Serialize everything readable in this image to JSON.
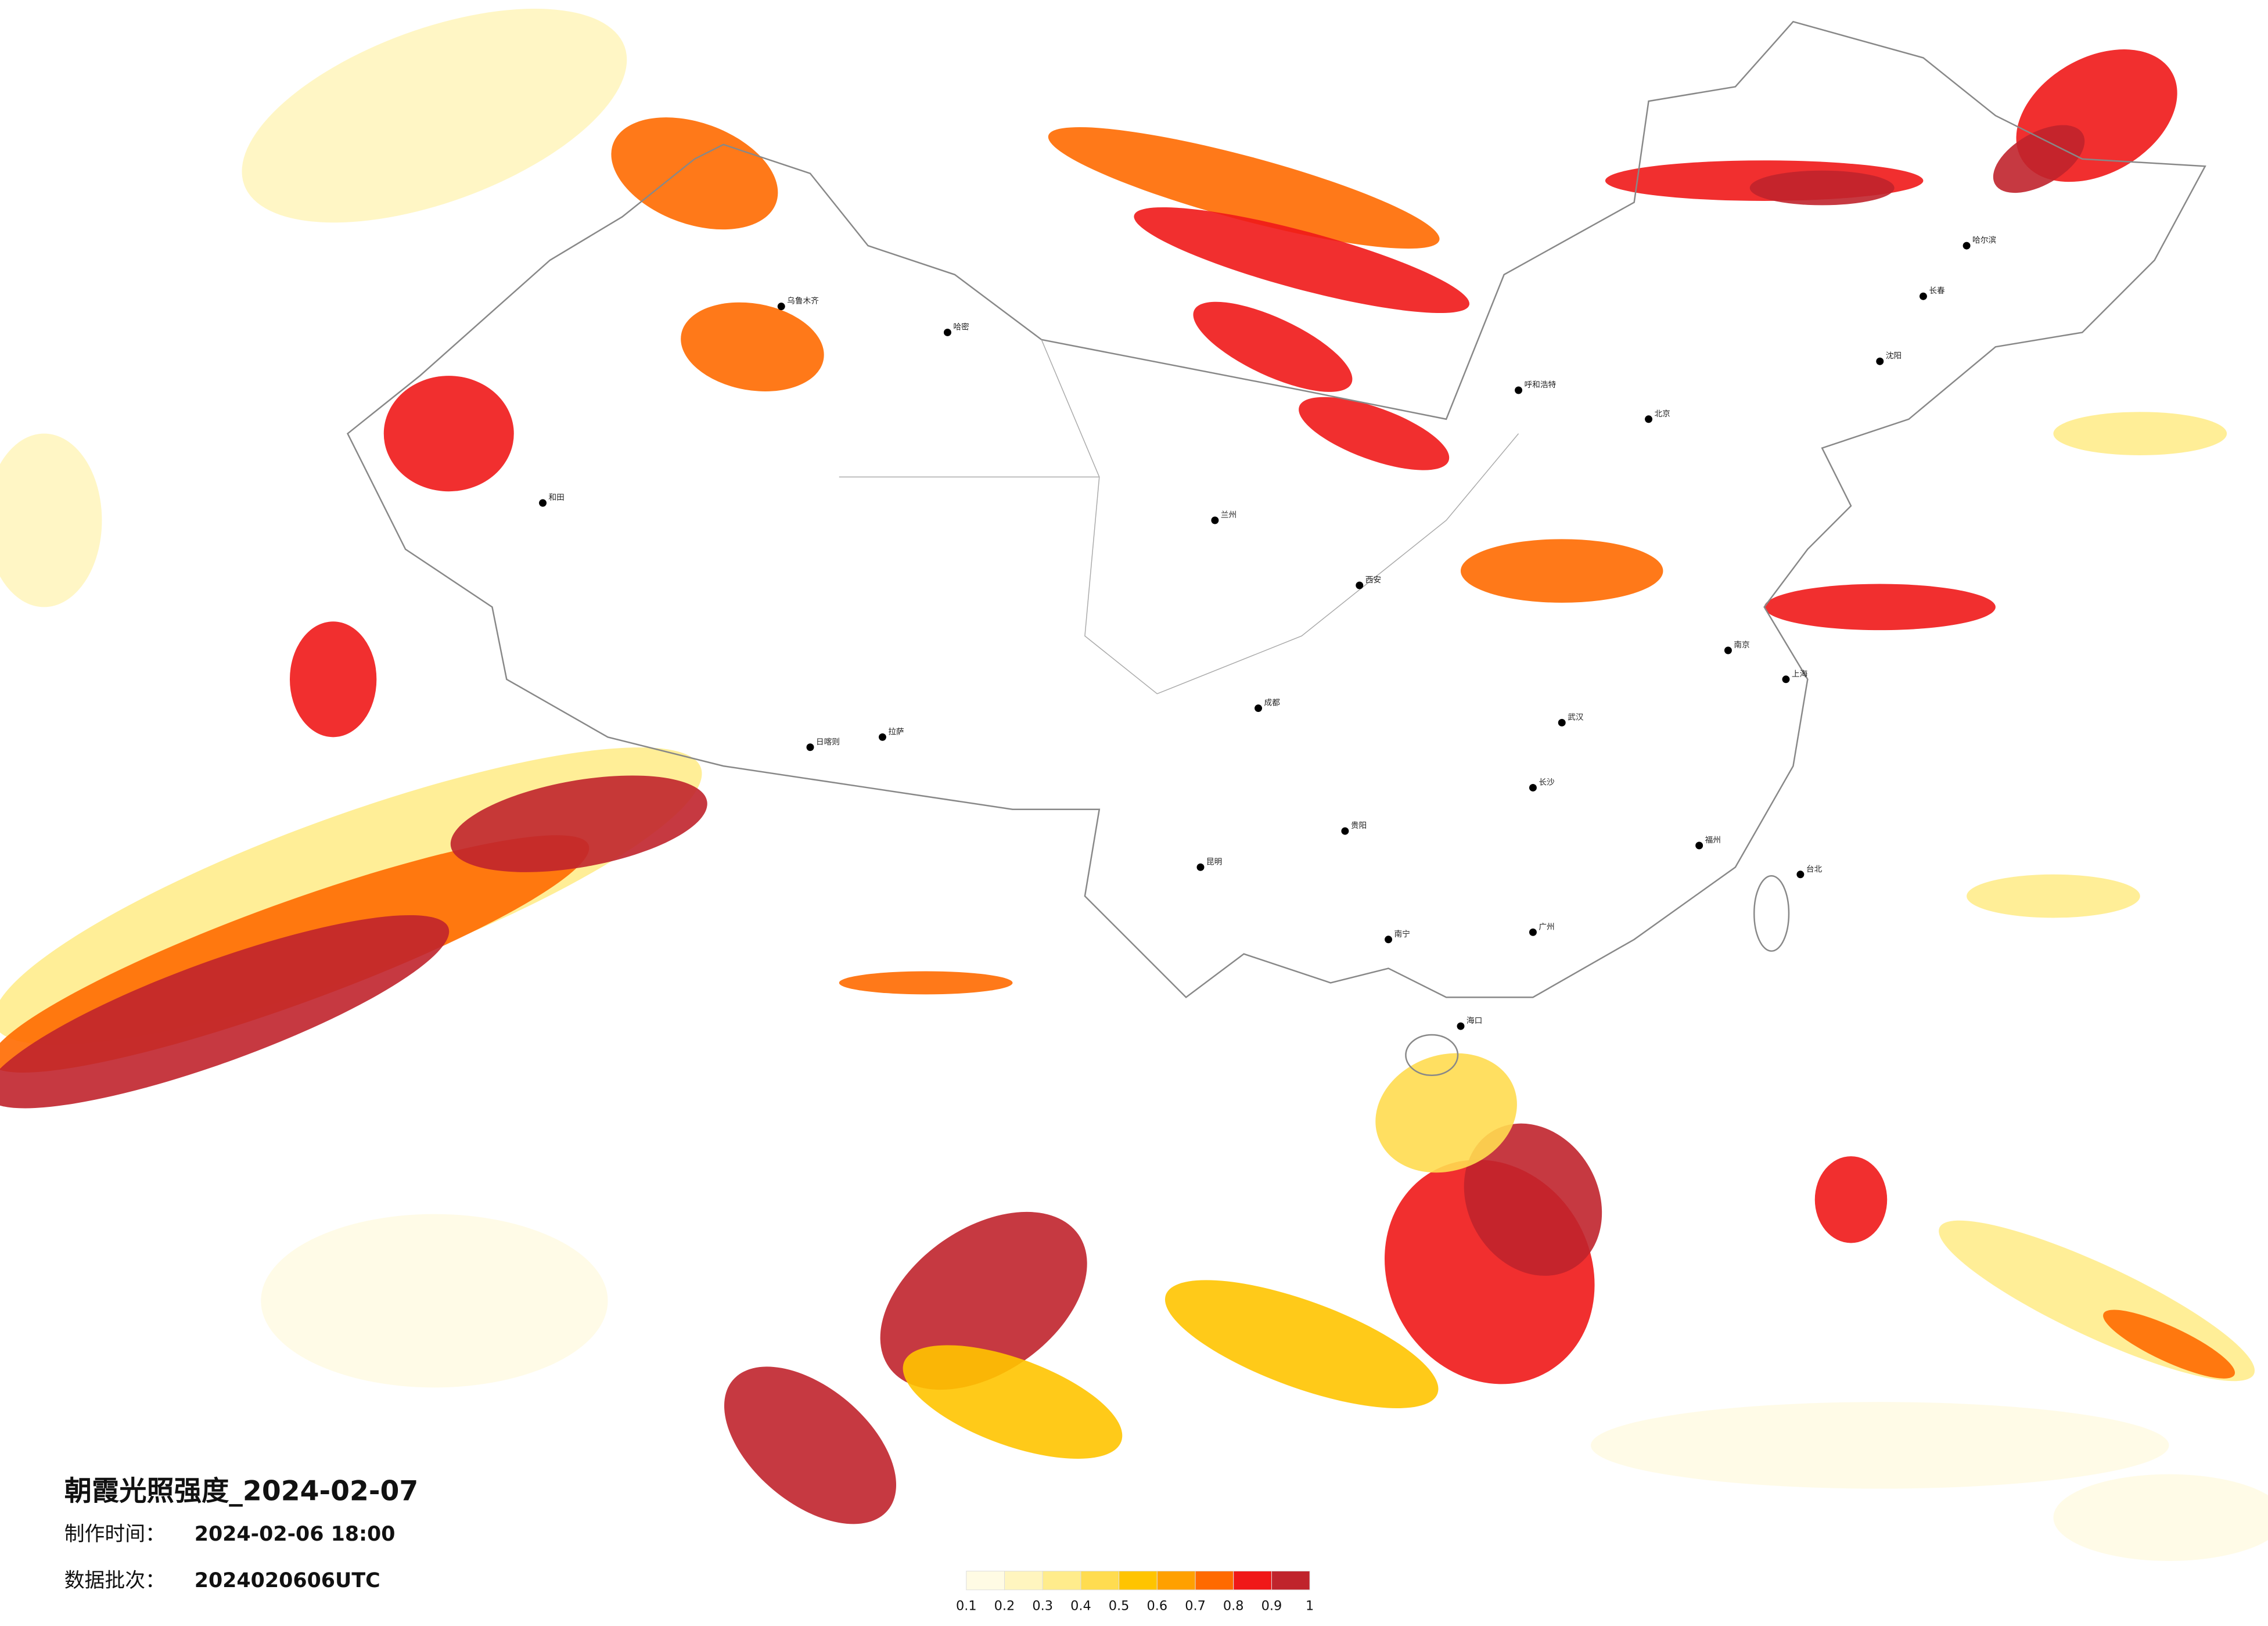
{
  "title": "朝霞光照强度_2024-02-07",
  "production_time": {
    "label": "制作时间：",
    "value": "2024-02-06 18:00"
  },
  "data_batch": {
    "label": "数据批次：",
    "value": "2024020606UTC"
  },
  "legend": {
    "ticks": [
      0.1,
      0.2,
      0.3,
      0.4,
      0.5,
      0.6,
      0.7,
      0.8,
      0.9,
      1
    ],
    "colors": [
      "#fffbe4",
      "#fff5bf",
      "#ffec8c",
      "#ffdc50",
      "#ffc400",
      "#ffa000",
      "#ff6a00",
      "#f01818",
      "#c0242c"
    ]
  },
  "cities": [
    "北京",
    "上海",
    "广州",
    "成都",
    "拉萨",
    "乌鲁木齐",
    "哈尔滨",
    "西安",
    "武汉",
    "昆明",
    "兰州",
    "呼和浩特",
    "台北",
    "海口",
    "哈密",
    "和田",
    "日喀则",
    "长春",
    "沈阳",
    "南京",
    "长沙",
    "贵阳",
    "南宁",
    "福州"
  ]
}
